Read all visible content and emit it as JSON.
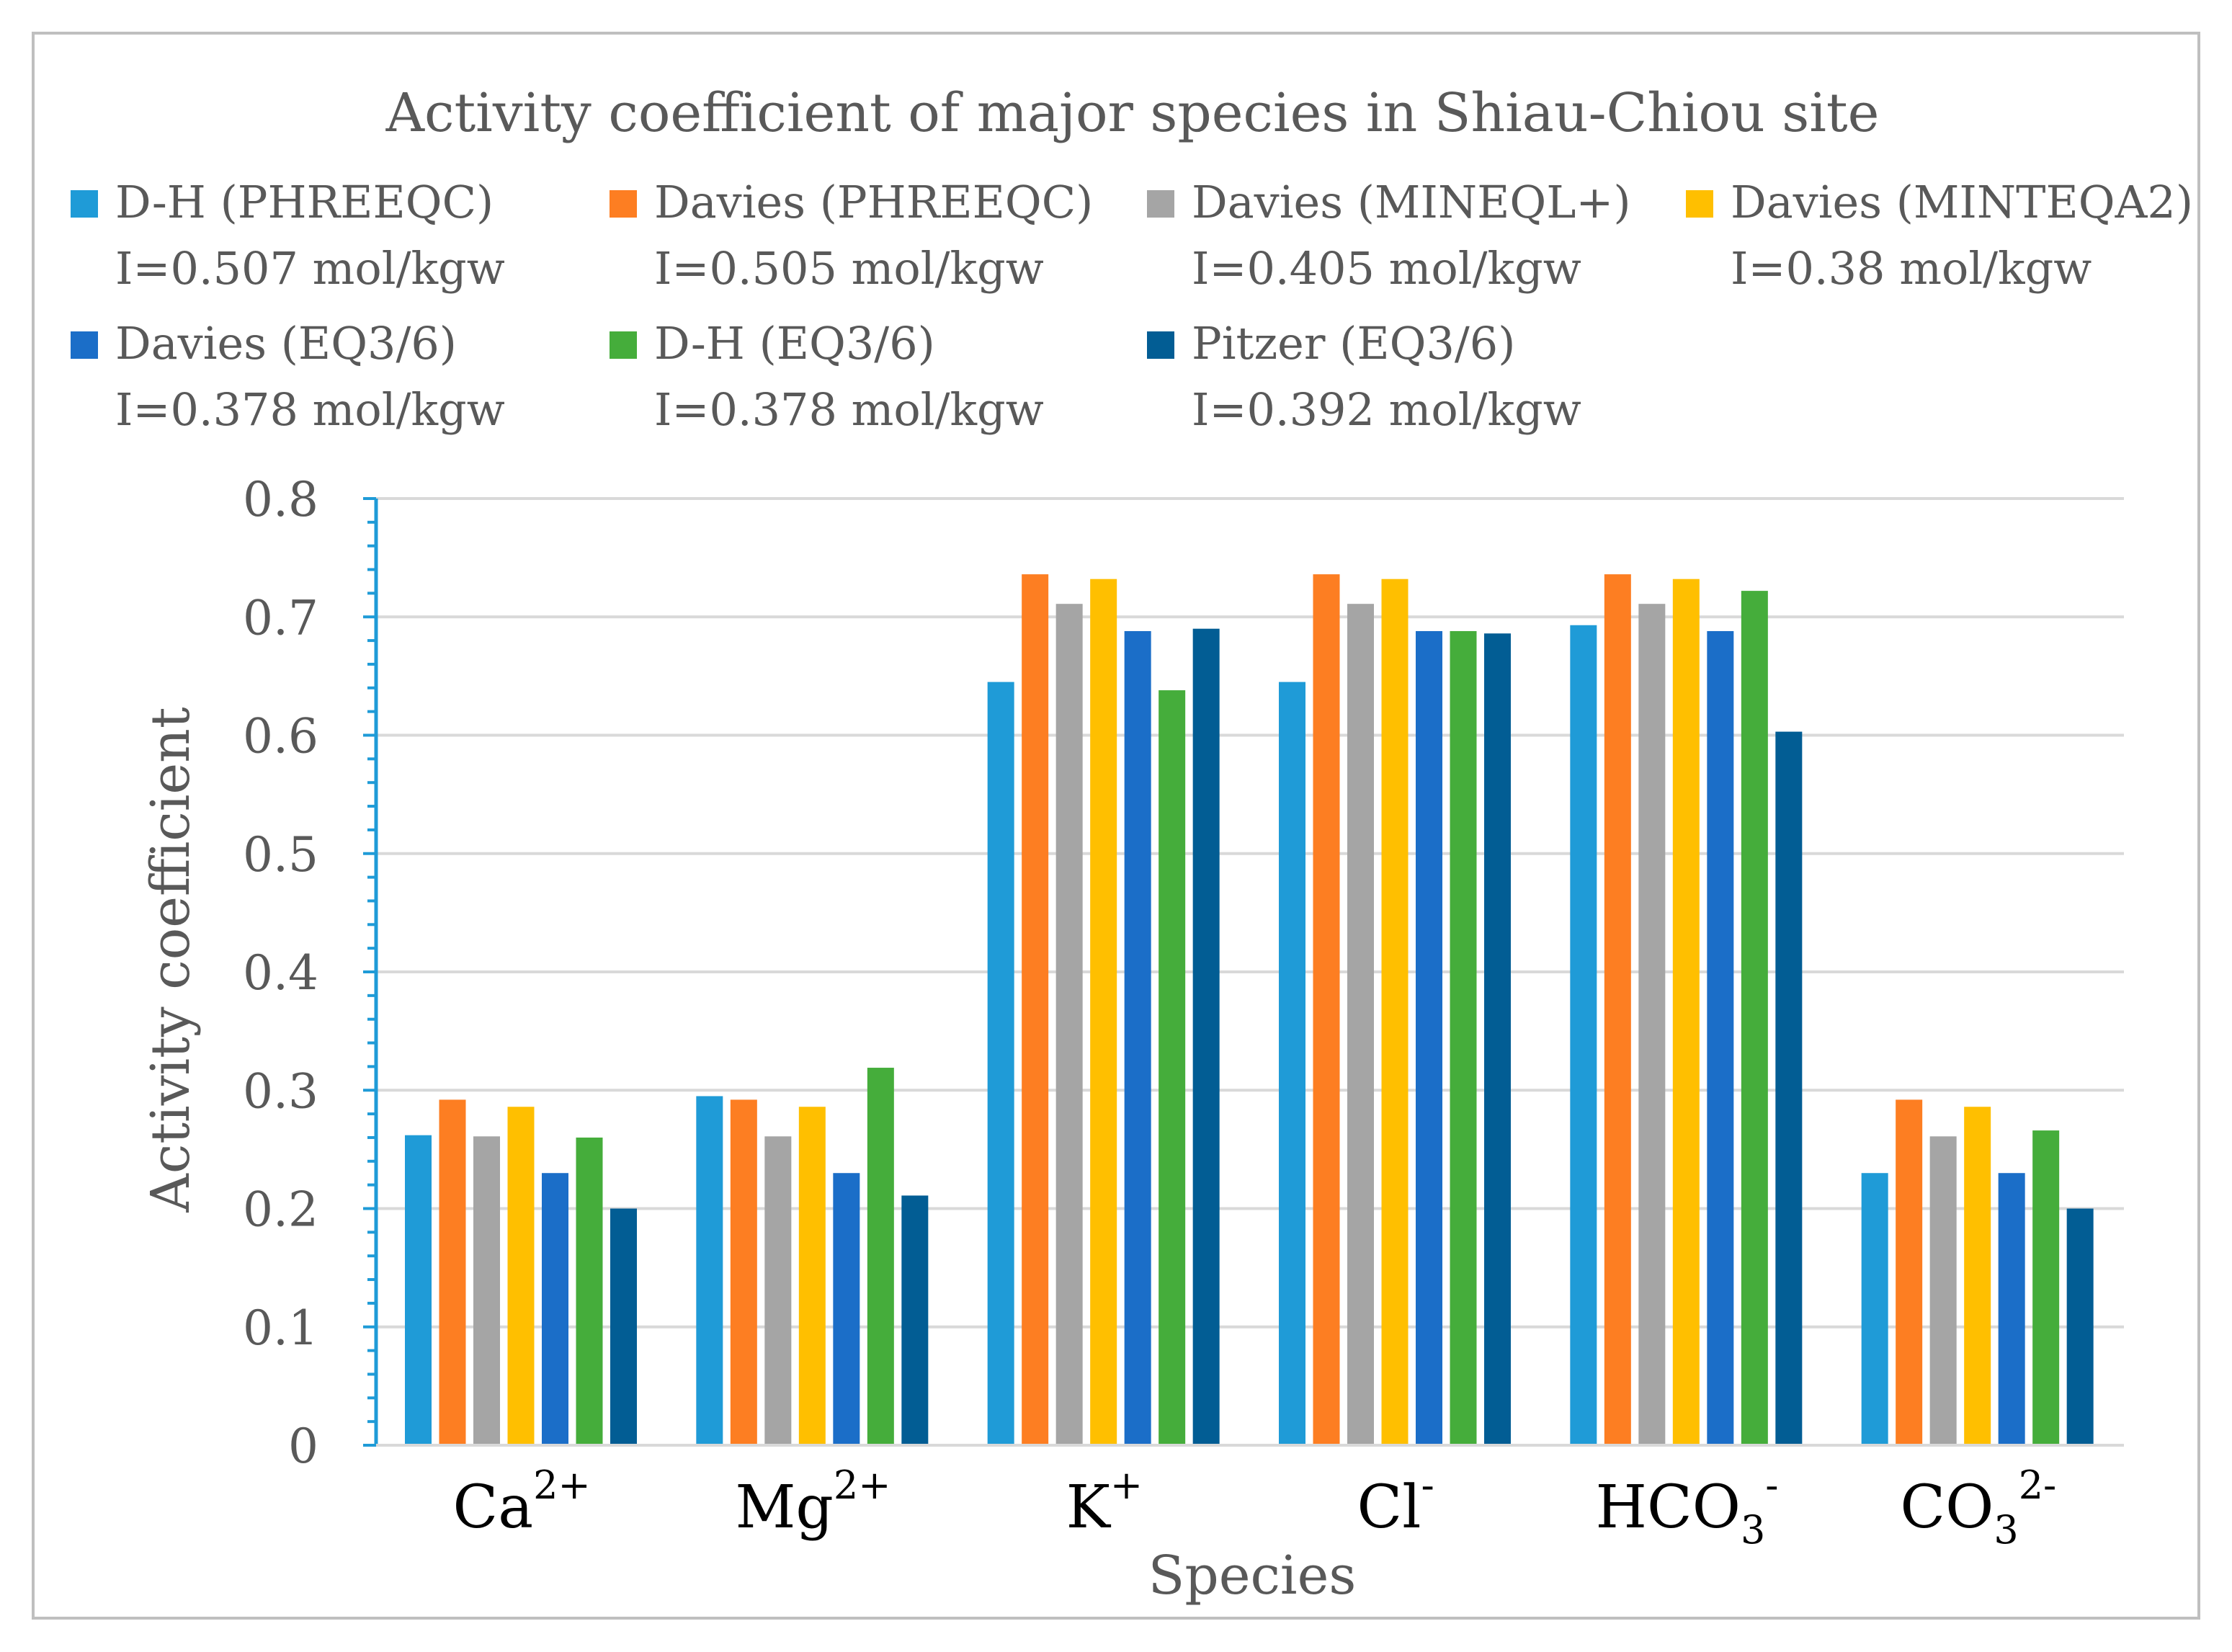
{
  "chart_data": {
    "type": "bar",
    "title": "Activity coefficient of major species in Shiau-Chiou site",
    "xlabel": "Species",
    "ylabel": "Activity coefficient",
    "ylim": [
      0,
      0.8
    ],
    "yticks": [
      "0",
      "0.1",
      "0.2",
      "0.3",
      "0.4",
      "0.5",
      "0.6",
      "0.7",
      "0.8"
    ],
    "grid": true,
    "legend_position": "top",
    "categories": [
      {
        "base": "Ca",
        "sub": "",
        "sup": "2+"
      },
      {
        "base": "Mg",
        "sub": "",
        "sup": "2+"
      },
      {
        "base": "K",
        "sub": "",
        "sup": "+"
      },
      {
        "base": "Cl",
        "sub": "",
        "sup": "-"
      },
      {
        "base": "HCO",
        "sub": "3",
        "sup": "-"
      },
      {
        "base": "CO",
        "sub": "3",
        "sup": "2-"
      }
    ],
    "series": [
      {
        "name": "D-H (PHREEQC)",
        "note": "I=0.507 mol/kgw",
        "color": "#1f9bd7",
        "values": [
          0.262,
          0.295,
          0.645,
          0.645,
          0.693,
          0.23
        ]
      },
      {
        "name": "Davies (PHREEQC)",
        "note": "I=0.505 mol/kgw",
        "color": "#fd7e22",
        "values": [
          0.292,
          0.292,
          0.736,
          0.736,
          0.736,
          0.292
        ]
      },
      {
        "name": "Davies (MINEQL+)",
        "note": "I=0.405 mol/kgw",
        "color": "#a5a5a5",
        "values": [
          0.261,
          0.261,
          0.711,
          0.711,
          0.711,
          0.261
        ]
      },
      {
        "name": "Davies (MINTEQA2)",
        "note": "I=0.38 mol/kgw",
        "color": "#ffbf00",
        "values": [
          0.286,
          0.286,
          0.732,
          0.732,
          0.732,
          0.286
        ]
      },
      {
        "name": "Davies (EQ3/6)",
        "note": "I=0.378 mol/kgw",
        "color": "#1b6ec8",
        "values": [
          0.23,
          0.23,
          0.688,
          0.688,
          0.688,
          0.23
        ]
      },
      {
        "name": "D-H (EQ3/6)",
        "note": "I=0.378 mol/kgw",
        "color": "#45ad3b",
        "values": [
          0.26,
          0.319,
          0.638,
          0.688,
          0.722,
          0.266
        ]
      },
      {
        "name": "Pitzer (EQ3/6)",
        "note": "I=0.392 mol/kgw",
        "color": "#025d94",
        "values": [
          0.2,
          0.211,
          0.69,
          0.686,
          0.603,
          0.2
        ]
      }
    ]
  }
}
